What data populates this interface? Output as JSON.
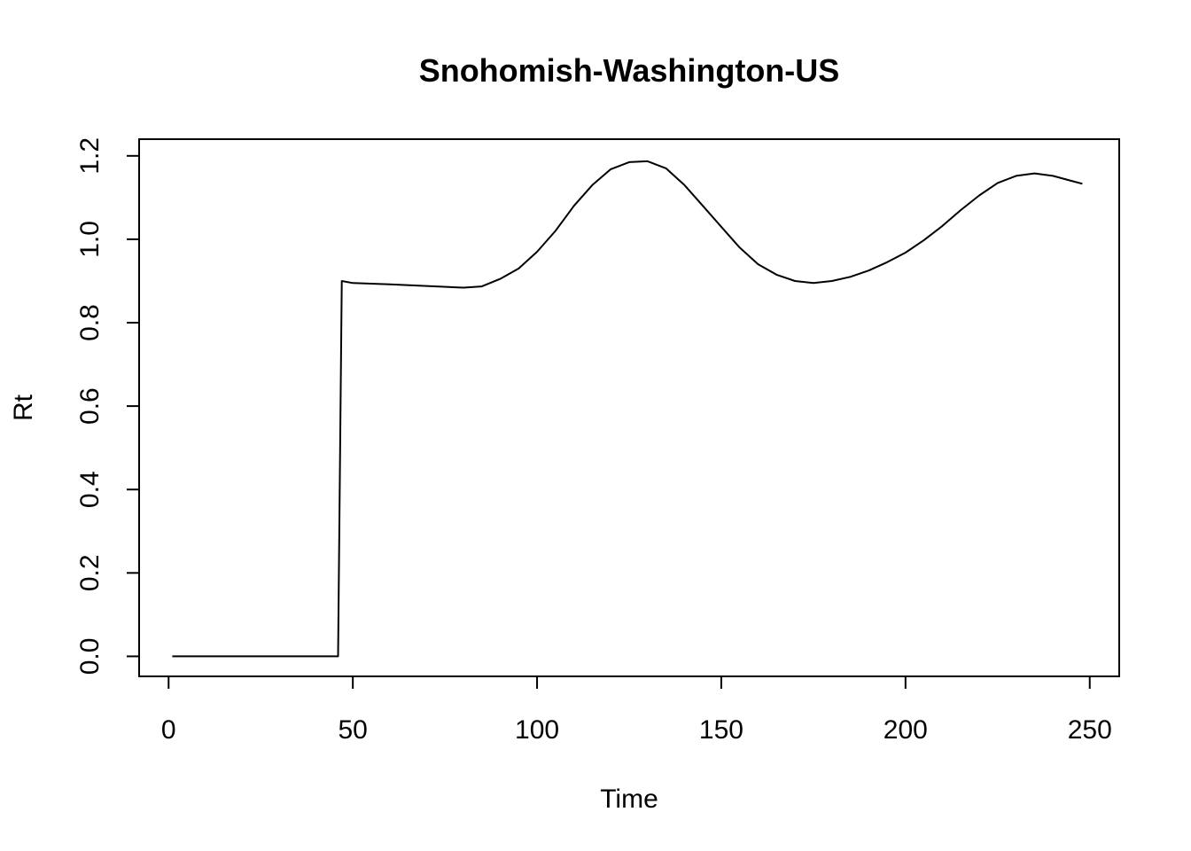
{
  "chart_data": {
    "type": "line",
    "title": "Snohomish-Washington-US",
    "xlabel": "Time",
    "ylabel": "Rt",
    "xlim": [
      -8,
      258
    ],
    "ylim": [
      -0.048,
      1.24
    ],
    "x_ticks": [
      0,
      50,
      100,
      150,
      200,
      250
    ],
    "y_ticks": [
      0.0,
      0.2,
      0.4,
      0.6,
      0.8,
      1.0,
      1.2
    ],
    "x_tick_labels": [
      "0",
      "50",
      "100",
      "150",
      "200",
      "250"
    ],
    "y_tick_labels": [
      "0.0",
      "0.2",
      "0.4",
      "0.6",
      "0.8",
      "1.0",
      "1.2"
    ],
    "grid": false,
    "legend": "none",
    "line_color": "#000000",
    "series": [
      {
        "x": [
          1,
          10,
          20,
          30,
          40,
          46,
          47,
          50,
          60,
          70,
          80,
          85,
          90,
          95,
          100,
          105,
          110,
          115,
          120,
          125,
          130,
          135,
          140,
          145,
          150,
          155,
          160,
          165,
          170,
          175,
          180,
          185,
          190,
          195,
          200,
          205,
          210,
          215,
          220,
          225,
          230,
          235,
          240,
          245,
          248
        ],
        "y": [
          0,
          0,
          0,
          0,
          0,
          0,
          0.9,
          0.895,
          0.892,
          0.888,
          0.884,
          0.887,
          0.905,
          0.93,
          0.97,
          1.02,
          1.08,
          1.13,
          1.168,
          1.185,
          1.187,
          1.17,
          1.13,
          1.08,
          1.03,
          0.98,
          0.94,
          0.915,
          0.9,
          0.895,
          0.9,
          0.91,
          0.925,
          0.945,
          0.968,
          0.998,
          1.032,
          1.07,
          1.105,
          1.135,
          1.152,
          1.158,
          1.152,
          1.14,
          1.133
        ]
      }
    ]
  }
}
